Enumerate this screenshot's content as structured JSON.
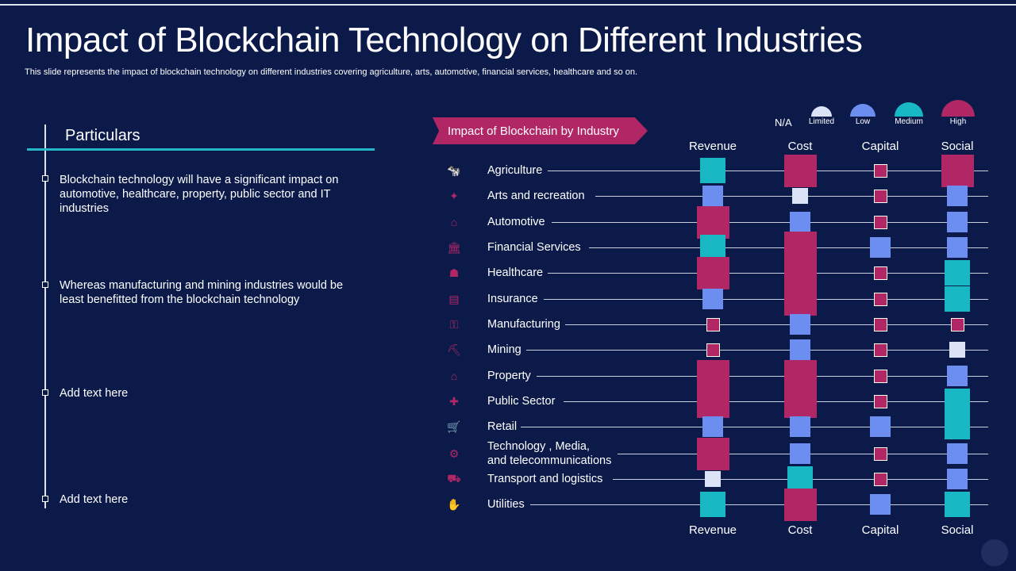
{
  "title": "Impact of Blockchain Technology on Different Industries",
  "subtitle": "This slide represents the impact of blockchain technology on different industries covering agriculture, arts, automotive, financial services, healthcare and so on.",
  "left_panel": {
    "heading": "Particulars",
    "items": [
      "Blockchain technology will have a significant impact on automotive, healthcare, property, public sector and IT industries",
      "Whereas manufacturing and mining industries would be least benefitted from the blockchain technology",
      "Add text here",
      "Add text here"
    ]
  },
  "banner": "Impact of Blockchain by Industry",
  "legend": {
    "na_label": "N/A",
    "levels": [
      {
        "key": "limited",
        "label": "Limited",
        "color": "#dde3f7"
      },
      {
        "key": "low",
        "label": "Low",
        "color": "#6b8ef0"
      },
      {
        "key": "medium",
        "label": "Medium",
        "color": "#17b8c4"
      },
      {
        "key": "high",
        "label": "High",
        "color": "#b12766"
      }
    ]
  },
  "colors": {
    "limited": "#dde3f7",
    "low": "#6b8ef0",
    "medium": "#17b8c4",
    "high": "#b12766",
    "na": "#b12766",
    "icon": "#b12766"
  },
  "chart_data": {
    "type": "table",
    "columns": [
      "Revenue",
      "Cost",
      "Capital",
      "Social"
    ],
    "rows": [
      {
        "industry": "Agriculture",
        "icon": "cow-icon",
        "values": [
          "medium",
          "high",
          "na",
          "high"
        ]
      },
      {
        "industry": "Arts and recreation",
        "icon": "performer-icon",
        "values": [
          "low",
          "limited",
          "na",
          "low"
        ]
      },
      {
        "industry": "Automotive",
        "icon": "garage-icon",
        "values": [
          "high",
          "low",
          "na",
          "low"
        ]
      },
      {
        "industry": "Financial Services",
        "icon": "bank-icon",
        "values": [
          "medium",
          "high",
          "low",
          "low"
        ]
      },
      {
        "industry": "Healthcare",
        "icon": "doctor-icon",
        "values": [
          "high",
          "high",
          "na",
          "medium"
        ]
      },
      {
        "industry": "Insurance",
        "icon": "insurance-icon",
        "values": [
          "low",
          "high",
          "na",
          "medium"
        ]
      },
      {
        "industry": "Manufacturing",
        "icon": "factory-icon",
        "values": [
          "na",
          "low",
          "na",
          "na"
        ]
      },
      {
        "industry": "Mining",
        "icon": "mining-icon",
        "values": [
          "na",
          "low",
          "na",
          "limited"
        ]
      },
      {
        "industry": "Property",
        "icon": "property-icon",
        "values": [
          "high",
          "high",
          "na",
          "low"
        ]
      },
      {
        "industry": "Public Sector",
        "icon": "handshake-icon",
        "values": [
          "high",
          "high",
          "na",
          "medium"
        ]
      },
      {
        "industry": "Retail",
        "icon": "cart-icon",
        "values": [
          "low",
          "low",
          "low",
          "medium"
        ]
      },
      {
        "industry": "Technology , Media,\nand telecommunications",
        "icon": "gear-icon",
        "values": [
          "high",
          "low",
          "na",
          "low"
        ]
      },
      {
        "industry": "Transport and logistics",
        "icon": "truck-icon",
        "values": [
          "limited",
          "medium",
          "na",
          "low"
        ]
      },
      {
        "industry": "Utilities",
        "icon": "utility-icon",
        "values": [
          "medium",
          "high",
          "low",
          "medium"
        ]
      }
    ]
  }
}
